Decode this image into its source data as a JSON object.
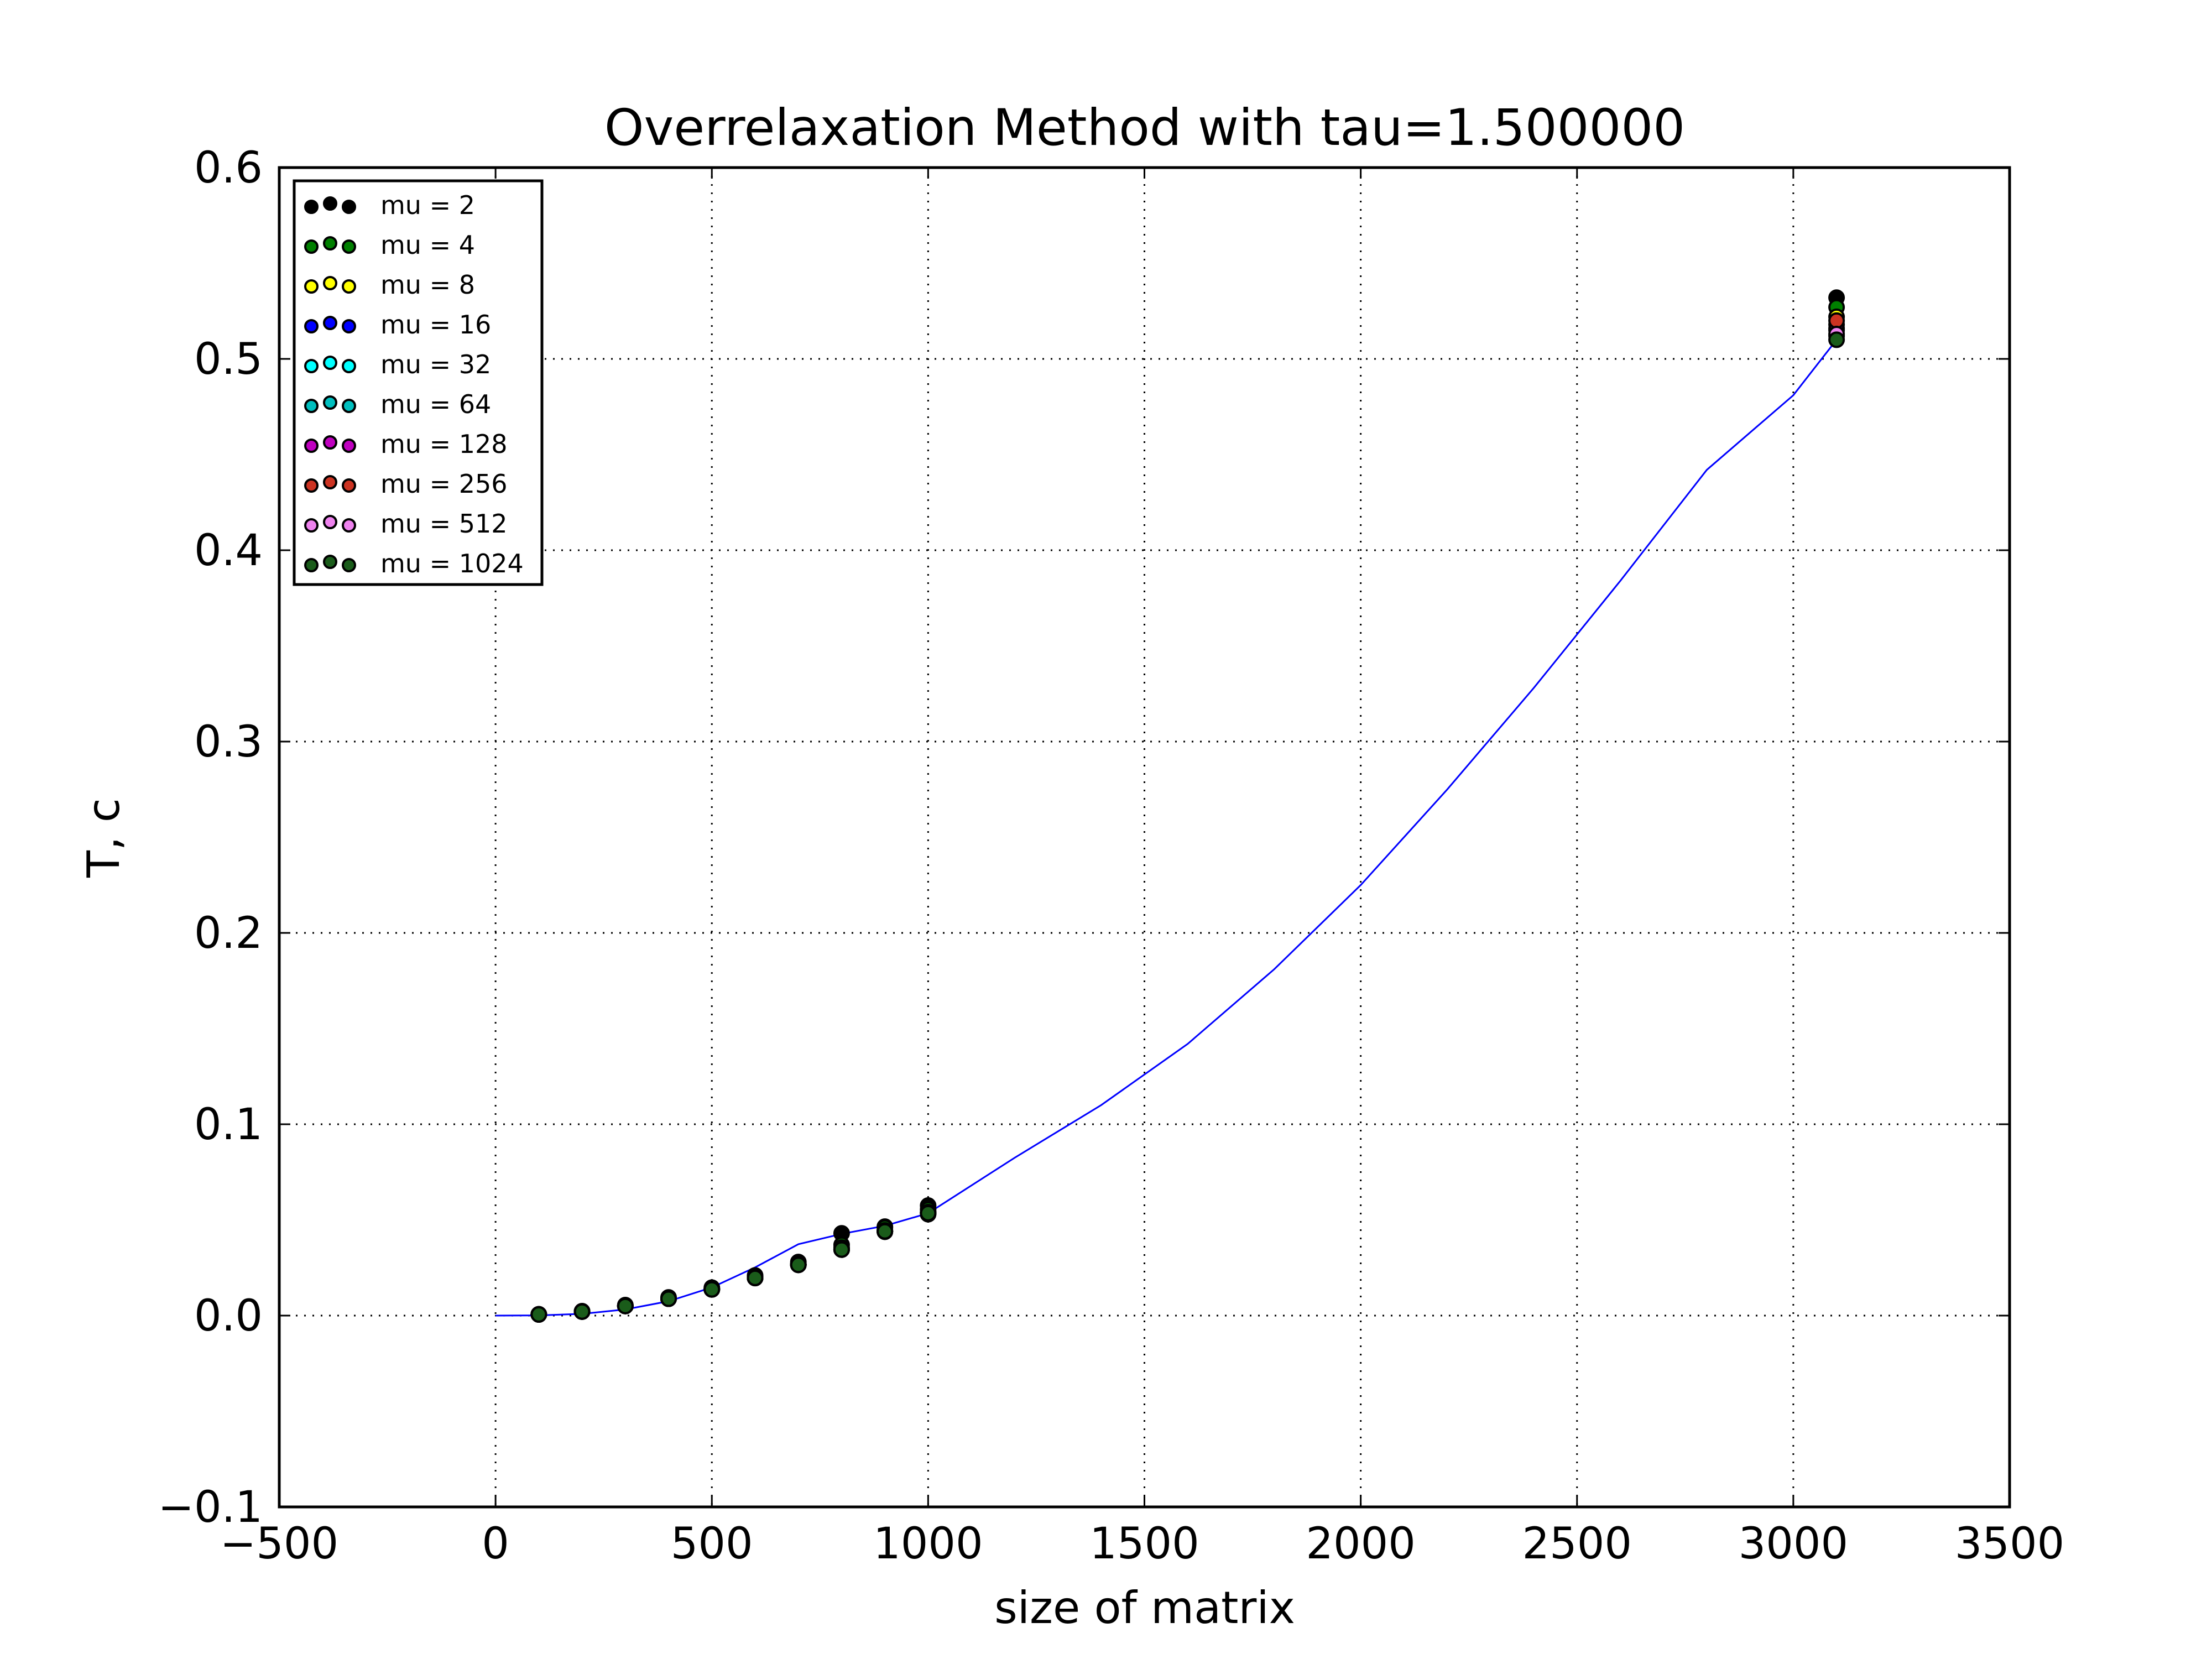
{
  "chart_data": {
    "type": "scatter",
    "title": "Overrelaxation Method with tau=1.500000",
    "xlabel": "size of matrix",
    "ylabel": "T, c",
    "xlim": [
      -500,
      3500
    ],
    "ylim": [
      -0.1,
      0.6
    ],
    "xticks": [
      -500,
      0,
      500,
      1000,
      1500,
      2000,
      2500,
      3000,
      3500
    ],
    "xtick_labels": [
      "−500",
      "0",
      "500",
      "1000",
      "1500",
      "2000",
      "2500",
      "3000",
      "3500"
    ],
    "yticks": [
      -0.1,
      0.0,
      0.1,
      0.2,
      0.3,
      0.4,
      0.5,
      0.6
    ],
    "ytick_labels": [
      "−0.1",
      "0.0",
      "0.1",
      "0.2",
      "0.3",
      "0.4",
      "0.5",
      "0.6"
    ],
    "grid": true,
    "grid_style": "dotted",
    "legend_position": "upper-left",
    "x": [
      100,
      200,
      300,
      400,
      500,
      600,
      700,
      800,
      900,
      1000,
      3100
    ],
    "series": [
      {
        "name": "mu = 2",
        "color": "#000000",
        "values": [
          0.0007,
          0.0023,
          0.0055,
          0.0095,
          0.0146,
          0.021,
          0.028,
          0.043,
          0.0465,
          0.0575,
          0.532
        ]
      },
      {
        "name": "mu = 4",
        "color": "#007f00",
        "values": [
          0.0007,
          0.0022,
          0.0052,
          0.009,
          0.014,
          0.02,
          0.027,
          0.037,
          0.046,
          0.0555,
          0.527
        ]
      },
      {
        "name": "mu = 8",
        "color": "#ffff00",
        "values": [
          0.0006,
          0.0021,
          0.0051,
          0.0089,
          0.0138,
          0.0198,
          0.0268,
          0.0355,
          0.0445,
          0.054,
          0.522
        ]
      },
      {
        "name": "mu = 16",
        "color": "#0000ff",
        "values": [
          0.0006,
          0.0021,
          0.005,
          0.0088,
          0.0137,
          0.0197,
          0.0266,
          0.0345,
          0.044,
          0.053,
          0.512
        ]
      },
      {
        "name": "mu = 32",
        "color": "#00ffff",
        "values": [
          0.0006,
          0.0021,
          0.005,
          0.0088,
          0.0137,
          0.0197,
          0.0265,
          0.0345,
          0.044,
          0.0535,
          0.516
        ]
      },
      {
        "name": "mu = 64",
        "color": "#00bfbf",
        "values": [
          0.0006,
          0.0021,
          0.005,
          0.0088,
          0.0137,
          0.0196,
          0.0265,
          0.0345,
          0.0438,
          0.0535,
          0.515
        ]
      },
      {
        "name": "mu = 128",
        "color": "#bf00bf",
        "values": [
          0.0006,
          0.0021,
          0.005,
          0.0088,
          0.0137,
          0.0196,
          0.0265,
          0.0345,
          0.044,
          0.0538,
          0.518
        ]
      },
      {
        "name": "mu = 256",
        "color": "#cc3322",
        "values": [
          0.0006,
          0.0021,
          0.005,
          0.0088,
          0.0137,
          0.0197,
          0.0266,
          0.0348,
          0.0442,
          0.054,
          0.52
        ]
      },
      {
        "name": "mu = 512",
        "color": "#ee82ee",
        "values": [
          0.0006,
          0.0021,
          0.005,
          0.0088,
          0.0137,
          0.0197,
          0.0266,
          0.0346,
          0.0441,
          0.0537,
          0.513
        ]
      },
      {
        "name": "mu = 1024",
        "color": "#1a5c1a",
        "values": [
          0.0006,
          0.0021,
          0.005,
          0.0088,
          0.0137,
          0.0197,
          0.0265,
          0.0345,
          0.044,
          0.0535,
          0.51
        ]
      }
    ],
    "fit_curve": {
      "color": "#0000ff",
      "x": [
        0,
        100,
        200,
        300,
        400,
        500,
        600,
        700,
        800,
        900,
        1000,
        1200,
        1400,
        1600,
        1800,
        2000,
        2200,
        2400,
        2600,
        2800,
        3000,
        3100
      ],
      "y": [
        0.0,
        0.00012,
        0.0009,
        0.0032,
        0.0075,
        0.0147,
        0.0252,
        0.0373,
        0.0427,
        0.0469,
        0.0535,
        0.0825,
        0.11,
        0.142,
        0.181,
        0.225,
        0.275,
        0.328,
        0.384,
        0.442,
        0.481,
        0.51
      ]
    }
  }
}
